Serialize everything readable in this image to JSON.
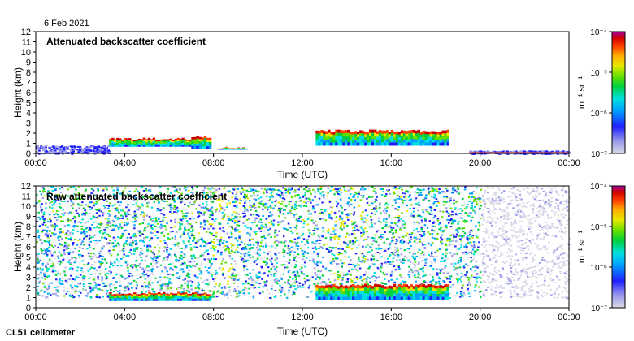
{
  "header": {
    "date": "6 Feb 2021"
  },
  "footer": {
    "instrument": "CL51 ceilometer"
  },
  "colors": {
    "scale": [
      "#d9d9e8",
      "#9a9ae8",
      "#2020ff",
      "#00a0ff",
      "#00e0e0",
      "#00d040",
      "#60e000",
      "#e8e800",
      "#ffb000",
      "#ff4000",
      "#d00000",
      "#a000a0"
    ],
    "frame": "#000000",
    "empty": "#ffffff"
  },
  "chart_data": [
    {
      "type": "heatmap",
      "title": "Attenuated backscatter coefficient",
      "xlabel": "Time (UTC)",
      "ylabel": "Height (km)",
      "xlim": [
        0,
        24
      ],
      "ylim": [
        0,
        12
      ],
      "x_ticks": [
        "00:00",
        "04:00",
        "08:00",
        "12:00",
        "16:00",
        "20:00",
        "00:00"
      ],
      "y_ticks": [
        "0",
        "1",
        "2",
        "3",
        "4",
        "5",
        "6",
        "7",
        "8",
        "9",
        "10",
        "11",
        "12"
      ],
      "colorbar": {
        "label": "m⁻¹ sr⁻¹",
        "scale": "log",
        "range": [
          1e-07,
          0.0001
        ],
        "ticks": [
          "10⁻⁷",
          "10⁻⁶",
          "10⁻⁵",
          "10⁻⁴"
        ]
      },
      "features": [
        {
          "start_h": 0.0,
          "end_h": 3.3,
          "top_km": 0.8,
          "description": "weak boundary-layer aerosol"
        },
        {
          "start_h": 3.3,
          "end_h": 7.0,
          "base_km": 0.7,
          "top_km": 1.6,
          "description": "cloud layer"
        },
        {
          "start_h": 7.0,
          "end_h": 7.9,
          "base_km": 0.5,
          "top_km": 1.8,
          "description": "broken cloud"
        },
        {
          "start_h": 8.2,
          "end_h": 9.5,
          "base_km": 0.4,
          "top_km": 0.7,
          "description": "low cloud"
        },
        {
          "start_h": 12.6,
          "end_h": 18.6,
          "base_km": 0.8,
          "top_km": 2.4,
          "description": "elevated cloud layer"
        },
        {
          "start_h": 19.5,
          "end_h": 24.0,
          "base_km": 0.0,
          "top_km": 0.3,
          "description": "near-surface signal"
        }
      ]
    },
    {
      "type": "heatmap",
      "title": "Raw attenuated backscatter coefficient",
      "xlabel": "Time (UTC)",
      "ylabel": "Height (km)",
      "xlim": [
        0,
        24
      ],
      "ylim": [
        0,
        12
      ],
      "x_ticks": [
        "00:00",
        "04:00",
        "08:00",
        "12:00",
        "16:00",
        "20:00",
        "00:00"
      ],
      "y_ticks": [
        "0",
        "1",
        "2",
        "3",
        "4",
        "5",
        "6",
        "7",
        "8",
        "9",
        "10",
        "11",
        "12"
      ],
      "colorbar": {
        "label": "m⁻¹ sr⁻¹",
        "scale": "log",
        "range": [
          1e-07,
          0.0001
        ],
        "ticks": [
          "10⁻⁷",
          "10⁻⁶",
          "10⁻⁵",
          "10⁻⁴"
        ]
      },
      "features": [
        {
          "start_h": 0.0,
          "end_h": 20.0,
          "base_km": 1.0,
          "top_km": 12.0,
          "description": "noise background (solar)"
        },
        {
          "start_h": 20.0,
          "end_h": 24.0,
          "base_km": 1.0,
          "top_km": 12.0,
          "description": "sparse noise (night)"
        },
        {
          "start_h": 3.3,
          "end_h": 7.9,
          "base_km": 0.7,
          "top_km": 1.6,
          "description": "cloud layer"
        },
        {
          "start_h": 12.6,
          "end_h": 18.6,
          "base_km": 0.8,
          "top_km": 2.4,
          "description": "elevated cloud layer"
        }
      ]
    }
  ]
}
